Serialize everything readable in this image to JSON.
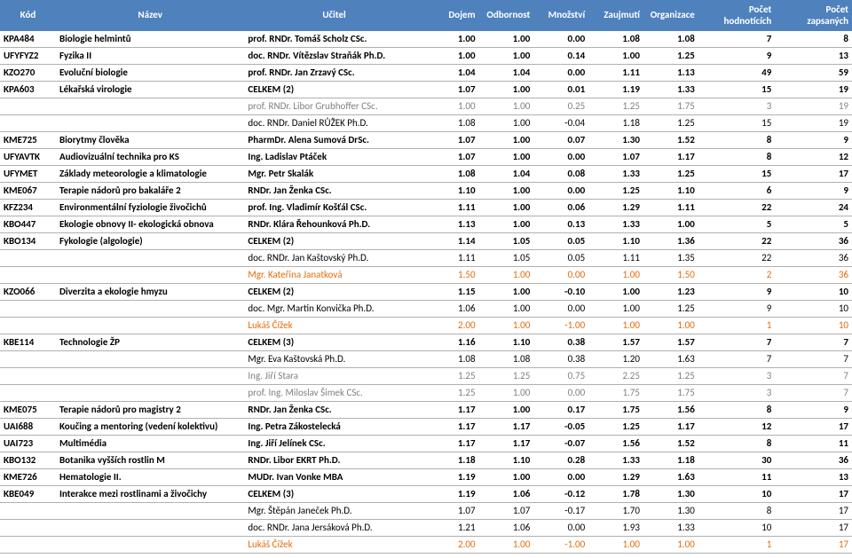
{
  "columns": [
    {
      "key": "kod",
      "label": "Kód",
      "class": "col-kod"
    },
    {
      "key": "nazev",
      "label": "Název",
      "class": "col-nazev"
    },
    {
      "key": "ucitel",
      "label": "Učitel",
      "class": "col-ucitel"
    },
    {
      "key": "dojem",
      "label": "Dojem",
      "class": "col-num"
    },
    {
      "key": "odb",
      "label": "Odbornost",
      "class": "col-num"
    },
    {
      "key": "mnoz",
      "label": "Množství",
      "class": "col-num"
    },
    {
      "key": "zauj",
      "label": "Zaujmutí",
      "class": "col-num"
    },
    {
      "key": "org",
      "label": "Organizace",
      "class": "col-num"
    },
    {
      "key": "hodn",
      "label": "Počet hodnotících",
      "class": "col-pocet"
    },
    {
      "key": "zap",
      "label": "Počet zapsaných",
      "class": "col-pocet"
    }
  ],
  "rows": [
    {
      "bold": true,
      "kod": "KPA484",
      "nazev": "Biologie helmintů",
      "ucitel": "prof. RNDr. Tomáš Scholz CSc.",
      "dojem": "1.00",
      "odb": "1.00",
      "mnoz": "0.00",
      "zauj": "1.08",
      "org": "1.08",
      "hodn": "7",
      "zap": "8"
    },
    {
      "bold": true,
      "kod": "UFYFYZ2",
      "nazev": "Fyzika II",
      "ucitel": "doc. RNDr. Vítězslav Straňák Ph.D.",
      "dojem": "1.00",
      "odb": "1.00",
      "mnoz": "0.14",
      "zauj": "1.00",
      "org": "1.25",
      "hodn": "9",
      "zap": "13"
    },
    {
      "bold": true,
      "kod": "KZO270",
      "nazev": "Evoluční biologie",
      "ucitel": "prof. RNDr. Jan Zrzavý CSc.",
      "dojem": "1.04",
      "odb": "1.04",
      "mnoz": "0.00",
      "zauj": "1.11",
      "org": "1.13",
      "hodn": "49",
      "zap": "59"
    },
    {
      "bold": true,
      "kod": "KPA603",
      "nazev": "Lékařská virologie",
      "ucitel": "CELKEM (2)",
      "dojem": "1.07",
      "odb": "1.00",
      "mnoz": "0.01",
      "zauj": "1.19",
      "org": "1.33",
      "hodn": "15",
      "zap": "19"
    },
    {
      "style": "gray",
      "ucitel": "prof. RNDr. Libor Grubhoffer CSc.",
      "dojem": "1.00",
      "odb": "1.00",
      "mnoz": "0.25",
      "zauj": "1.25",
      "org": "1.75",
      "hodn": "3",
      "zap": "19"
    },
    {
      "ucitel": "doc. RNDr. Daniel RŮŽEK Ph.D.",
      "dojem": "1.08",
      "odb": "1.00",
      "mnoz": "-0.04",
      "zauj": "1.18",
      "org": "1.25",
      "hodn": "15",
      "zap": "19"
    },
    {
      "bold": true,
      "kod": "KME725",
      "nazev": "Biorytmy člověka",
      "ucitel": "PharmDr. Alena Sumová DrSc.",
      "dojem": "1.07",
      "odb": "1.00",
      "mnoz": "0.07",
      "zauj": "1.30",
      "org": "1.52",
      "hodn": "8",
      "zap": "9"
    },
    {
      "bold": true,
      "kod": "UFYAVTK",
      "nazev": "Audiovizuální technika pro KS",
      "ucitel": "Ing. Ladislav Ptáček",
      "dojem": "1.07",
      "odb": "1.00",
      "mnoz": "0.00",
      "zauj": "1.07",
      "org": "1.17",
      "hodn": "8",
      "zap": "12"
    },
    {
      "bold": true,
      "kod": "UFYMET",
      "nazev": "Základy meteorologie a klimatologie",
      "ucitel": "Mgr. Petr Skalák",
      "dojem": "1.08",
      "odb": "1.04",
      "mnoz": "0.08",
      "zauj": "1.33",
      "org": "1.25",
      "hodn": "15",
      "zap": "17"
    },
    {
      "bold": true,
      "kod": "KME067",
      "nazev": "Terapie nádorů pro bakaláře 2",
      "ucitel": "RNDr. Jan Ženka CSc.",
      "dojem": "1.10",
      "odb": "1.00",
      "mnoz": "0.00",
      "zauj": "1.25",
      "org": "1.10",
      "hodn": "6",
      "zap": "9"
    },
    {
      "bold": true,
      "kod": "KFZ234",
      "nazev": "Environmentální fyziologie živočichů",
      "ucitel": "prof. Ing. Vladimír Košťál CSc.",
      "dojem": "1.11",
      "odb": "1.00",
      "mnoz": "0.06",
      "zauj": "1.29",
      "org": "1.11",
      "hodn": "22",
      "zap": "24"
    },
    {
      "bold": true,
      "kod": "KBO447",
      "nazev": "Ekologie obnovy II- ekologická obnova",
      "ucitel": "RNDr. Klára Řehounková Ph.D.",
      "dojem": "1.13",
      "odb": "1.00",
      "mnoz": "0.13",
      "zauj": "1.33",
      "org": "1.00",
      "hodn": "5",
      "zap": "5"
    },
    {
      "bold": true,
      "kod": "KBO134",
      "nazev": "Fykologie (algologie)",
      "ucitel": "CELKEM (2)",
      "dojem": "1.14",
      "odb": "1.05",
      "mnoz": "0.05",
      "zauj": "1.10",
      "org": "1.36",
      "hodn": "22",
      "zap": "36"
    },
    {
      "ucitel": "doc. RNDr. Jan Kaštovský Ph.D.",
      "dojem": "1.11",
      "odb": "1.05",
      "mnoz": "0.05",
      "zauj": "1.11",
      "org": "1.35",
      "hodn": "22",
      "zap": "36"
    },
    {
      "style": "orange",
      "ucitel": "Mgr. Kateřina Janatková",
      "dojem": "1.50",
      "odb": "1.00",
      "mnoz": "0.00",
      "zauj": "1.00",
      "org": "1.50",
      "hodn": "2",
      "zap": "36"
    },
    {
      "bold": true,
      "kod": "KZO066",
      "nazev": "Diverzita a ekologie hmyzu",
      "ucitel": "CELKEM (2)",
      "dojem": "1.15",
      "odb": "1.00",
      "mnoz": "-0.10",
      "zauj": "1.00",
      "org": "1.23",
      "hodn": "9",
      "zap": "10"
    },
    {
      "ucitel": "doc. Mgr. Martin Konvička Ph.D.",
      "dojem": "1.06",
      "odb": "1.00",
      "mnoz": "0.00",
      "zauj": "1.00",
      "org": "1.25",
      "hodn": "9",
      "zap": "10"
    },
    {
      "style": "orange",
      "ucitel": "Lukáš Čížek",
      "dojem": "2.00",
      "odb": "1.00",
      "mnoz": "-1.00",
      "zauj": "1.00",
      "org": "1.00",
      "hodn": "1",
      "zap": "10"
    },
    {
      "bold": true,
      "kod": "KBE114",
      "nazev": "Technologie ŽP",
      "ucitel": "CELKEM (3)",
      "dojem": "1.16",
      "odb": "1.10",
      "mnoz": "0.38",
      "zauj": "1.57",
      "org": "1.57",
      "hodn": "7",
      "zap": "7"
    },
    {
      "ucitel": "Mgr. Eva Kaštovská Ph.D.",
      "dojem": "1.08",
      "odb": "1.08",
      "mnoz": "0.38",
      "zauj": "1.20",
      "org": "1.63",
      "hodn": "7",
      "zap": "7"
    },
    {
      "style": "gray",
      "ucitel": "Ing. Jiří Stara",
      "dojem": "1.25",
      "odb": "1.25",
      "mnoz": "0.75",
      "zauj": "2.25",
      "org": "1.25",
      "hodn": "3",
      "zap": "7"
    },
    {
      "style": "gray",
      "ucitel": "prof. Ing. Miloslav Šimek CSc.",
      "dojem": "1.25",
      "odb": "1.00",
      "mnoz": "0.00",
      "zauj": "1.75",
      "org": "1.75",
      "hodn": "3",
      "zap": "7"
    },
    {
      "bold": true,
      "kod": "KME075",
      "nazev": "Terapie nádorů pro magistry 2",
      "ucitel": "RNDr. Jan Ženka CSc.",
      "dojem": "1.17",
      "odb": "1.00",
      "mnoz": "0.17",
      "zauj": "1.75",
      "org": "1.56",
      "hodn": "8",
      "zap": "9"
    },
    {
      "bold": true,
      "kod": "UAI688",
      "nazev": "Koučing a mentoring (vedení kolektivu)",
      "ucitel": "Ing. Petra Zákostelecká",
      "dojem": "1.17",
      "odb": "1.17",
      "mnoz": "-0.05",
      "zauj": "1.25",
      "org": "1.17",
      "hodn": "12",
      "zap": "17"
    },
    {
      "bold": true,
      "kod": "UAI723",
      "nazev": "Multimédia",
      "ucitel": "Ing. Jiří Jelínek CSc.",
      "dojem": "1.17",
      "odb": "1.17",
      "mnoz": "-0.07",
      "zauj": "1.56",
      "org": "1.52",
      "hodn": "8",
      "zap": "11"
    },
    {
      "bold": true,
      "kod": "KBO132",
      "nazev": "Botanika vyšších rostlin M",
      "ucitel": "RNDr. Libor EKRT Ph.D.",
      "dojem": "1.18",
      "odb": "1.10",
      "mnoz": "0.28",
      "zauj": "1.33",
      "org": "1.18",
      "hodn": "30",
      "zap": "36"
    },
    {
      "bold": true,
      "kod": "KME726",
      "nazev": "Hematologie II.",
      "ucitel": "MUDr. Ivan Vonke MBA",
      "dojem": "1.19",
      "odb": "1.00",
      "mnoz": "0.00",
      "zauj": "1.29",
      "org": "1.63",
      "hodn": "11",
      "zap": "13"
    },
    {
      "bold": true,
      "kod": "KBE049",
      "nazev": "Interakce mezi rostlinami a živočichy",
      "ucitel": "CELKEM (3)",
      "dojem": "1.19",
      "odb": "1.06",
      "mnoz": "-0.12",
      "zauj": "1.78",
      "org": "1.30",
      "hodn": "10",
      "zap": "17"
    },
    {
      "ucitel": "Mgr. Štěpán Janeček Ph.D.",
      "dojem": "1.07",
      "odb": "1.07",
      "mnoz": "-0.17",
      "zauj": "1.70",
      "org": "1.30",
      "hodn": "8",
      "zap": "17"
    },
    {
      "ucitel": "doc. RNDr. Jana Jersáková Ph.D.",
      "dojem": "1.21",
      "odb": "1.06",
      "mnoz": "0.00",
      "zauj": "1.93",
      "org": "1.33",
      "hodn": "10",
      "zap": "17"
    },
    {
      "style": "orange",
      "ucitel": "Lukáš Čížek",
      "dojem": "2.00",
      "odb": "1.00",
      "mnoz": "-1.00",
      "zauj": "1.00",
      "org": "1.00",
      "hodn": "1",
      "zap": "17"
    }
  ]
}
